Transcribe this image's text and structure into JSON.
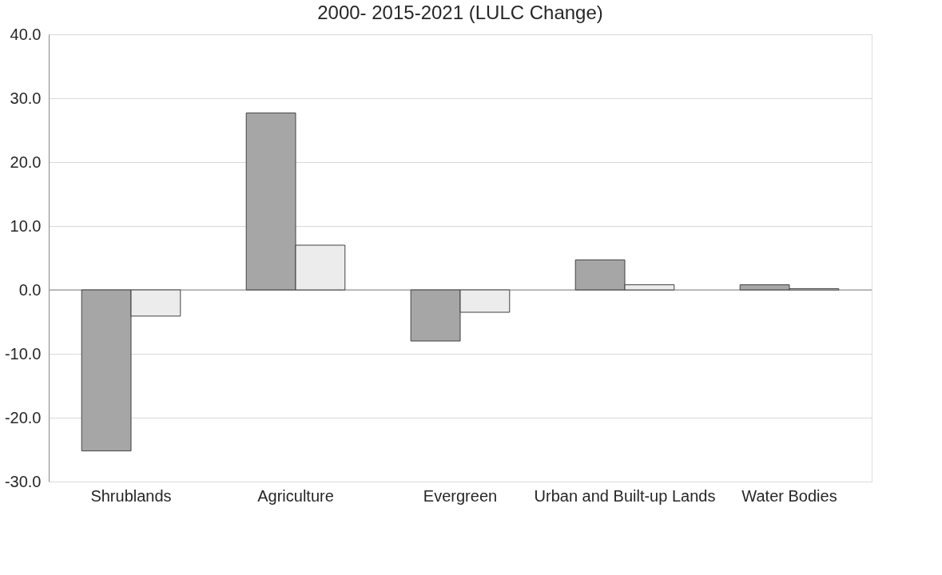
{
  "chart_data": {
    "type": "bar",
    "title": "2000- 2015-2021 (LULC Change)",
    "categories": [
      "Shrublands",
      "Agriculture",
      "Evergreen",
      "Urban and Built-up Lands",
      "Water Bodies"
    ],
    "series": [
      {
        "color": "#a6a6a6",
        "values": [
          -25.2,
          27.7,
          -8.0,
          4.7,
          0.8
        ]
      },
      {
        "color": "#ececec",
        "values": [
          -4.1,
          7.0,
          -3.5,
          0.8,
          0.2
        ]
      }
    ],
    "ylim": [
      -30,
      40
    ],
    "yticks": [
      {
        "value": -30,
        "label": "-30.0"
      },
      {
        "value": -20,
        "label": "-20.0"
      },
      {
        "value": -10,
        "label": "-10.0"
      },
      {
        "value": 0,
        "label": "0.0"
      },
      {
        "value": 10,
        "label": "10.0"
      },
      {
        "value": 20,
        "label": "20.0"
      },
      {
        "value": 30,
        "label": "30.0"
      },
      {
        "value": 40,
        "label": "40.0"
      }
    ],
    "grid": "y",
    "legend": false
  }
}
